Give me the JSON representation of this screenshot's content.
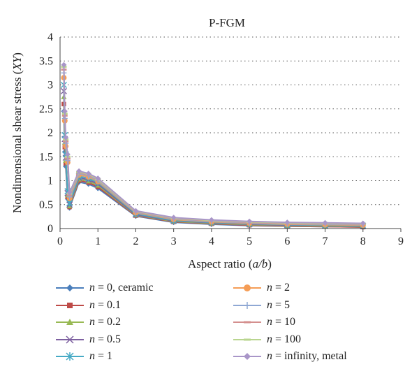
{
  "chart_data": {
    "type": "line",
    "title": "P-FGM",
    "xlabel": "Aspect ratio (a/b)",
    "ylabel": "Nondimensional shear stress (XY)",
    "xlim": [
      0,
      9
    ],
    "ylim": [
      0,
      4
    ],
    "xticks": [
      "0",
      "1",
      "2",
      "3",
      "4",
      "5",
      "6",
      "7",
      "8",
      "9"
    ],
    "yticks": [
      "0",
      "0.5",
      "1",
      "1.5",
      "2",
      "2.5",
      "3",
      "3.5",
      "4"
    ],
    "grid": "horizontal dotted",
    "legend_placement": "bottom",
    "x": [
      0.1,
      0.125,
      0.15,
      0.2,
      0.25,
      0.5,
      0.75,
      1,
      2,
      3,
      4,
      5,
      6,
      7,
      8
    ],
    "series": [
      {
        "name": "n = 0, ceramic",
        "color": "#4a7ebb",
        "marker": "diamond",
        "values": [
          2.45,
          1.6,
          1.3,
          0.62,
          0.43,
          0.97,
          0.93,
          0.84,
          0.26,
          0.13,
          0.09,
          0.06,
          0.05,
          0.04,
          0.03
        ]
      },
      {
        "name": "n = 0.1",
        "color": "#be4b48",
        "marker": "square",
        "values": [
          2.6,
          1.7,
          1.36,
          0.66,
          0.45,
          1.0,
          0.96,
          0.87,
          0.27,
          0.14,
          0.1,
          0.07,
          0.05,
          0.04,
          0.03
        ]
      },
      {
        "name": "n = 0.2",
        "color": "#98b954",
        "marker": "triangle",
        "values": [
          2.75,
          1.8,
          1.42,
          0.7,
          0.47,
          1.03,
          0.99,
          0.9,
          0.28,
          0.15,
          0.11,
          0.08,
          0.06,
          0.05,
          0.04
        ]
      },
      {
        "name": "n = 0.5",
        "color": "#7d60a0",
        "marker": "x",
        "values": [
          2.87,
          1.87,
          1.48,
          0.74,
          0.5,
          1.06,
          1.02,
          0.93,
          0.29,
          0.16,
          0.12,
          0.09,
          0.07,
          0.06,
          0.05
        ]
      },
      {
        "name": "n = 1",
        "color": "#46aac5",
        "marker": "asterisk",
        "values": [
          3.0,
          1.95,
          1.55,
          0.78,
          0.53,
          1.09,
          1.05,
          0.96,
          0.31,
          0.17,
          0.13,
          0.1,
          0.08,
          0.07,
          0.06
        ]
      },
      {
        "name": "n = 2",
        "color": "#f59d56",
        "marker": "circle",
        "values": [
          3.15,
          2.25,
          1.72,
          1.38,
          0.63,
          1.12,
          1.08,
          0.98,
          0.33,
          0.19,
          0.14,
          0.11,
          0.09,
          0.08,
          0.07
        ]
      },
      {
        "name": "n = 5",
        "color": "#8fa8d4",
        "marker": "plus",
        "values": [
          3.25,
          2.3,
          1.78,
          1.42,
          0.66,
          1.15,
          1.1,
          1.0,
          0.34,
          0.2,
          0.15,
          0.12,
          0.1,
          0.09,
          0.08
        ]
      },
      {
        "name": "n = 10",
        "color": "#d48f8e",
        "marker": "dash",
        "values": [
          3.32,
          2.36,
          1.82,
          1.46,
          0.7,
          1.17,
          1.12,
          1.02,
          0.35,
          0.21,
          0.16,
          0.13,
          0.11,
          0.1,
          0.09
        ]
      },
      {
        "name": "n = 100",
        "color": "#b9d58f",
        "marker": "dash",
        "values": [
          3.38,
          2.4,
          1.86,
          1.5,
          0.73,
          1.18,
          1.14,
          1.03,
          0.36,
          0.22,
          0.17,
          0.14,
          0.12,
          0.11,
          0.1
        ]
      },
      {
        "name": "n = infinity, metal",
        "color": "#a996c8",
        "marker": "diamond",
        "values": [
          3.42,
          2.45,
          1.9,
          1.55,
          0.75,
          1.2,
          1.15,
          1.05,
          0.37,
          0.23,
          0.18,
          0.15,
          0.13,
          0.12,
          0.11
        ]
      }
    ]
  }
}
